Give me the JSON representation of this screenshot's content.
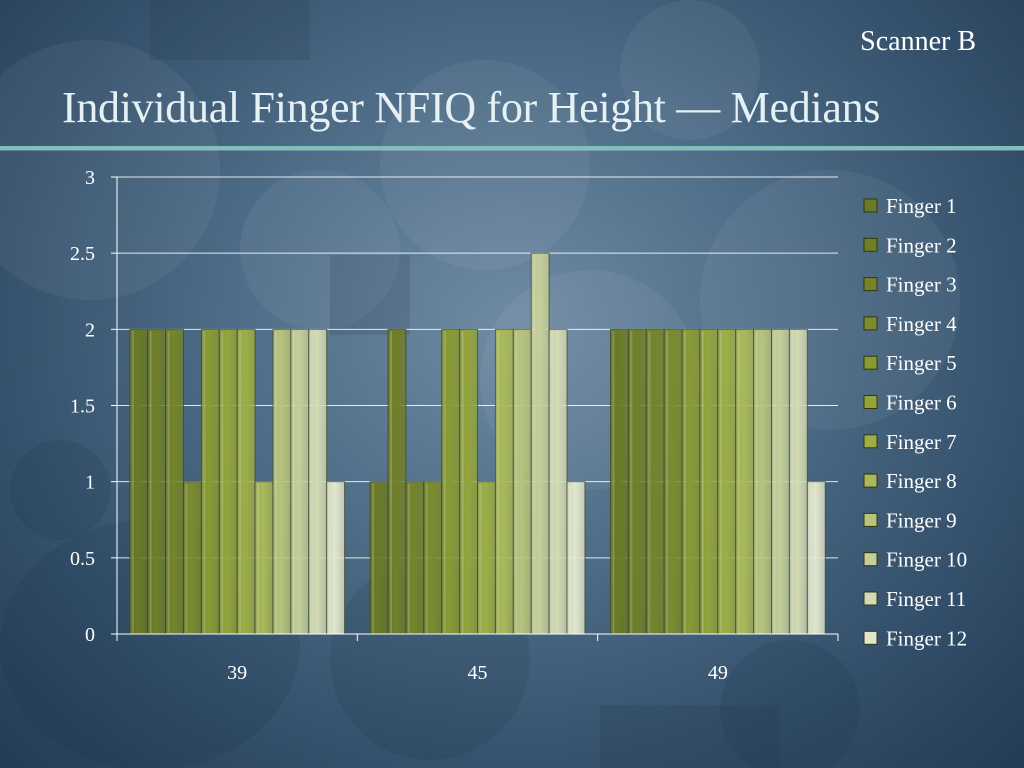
{
  "slide": {
    "header": "Scanner B",
    "title": "Individual Finger NFIQ for Height — Medians"
  },
  "colors": {
    "finger_palette": [
      "#6b7a24",
      "#707f27",
      "#75842a",
      "#7b8b2d",
      "#8a9a32",
      "#94a43a",
      "#9eae45",
      "#aab957",
      "#b8c47a",
      "#c6cf98",
      "#d4dab3",
      "#e2e6cc"
    ],
    "gridline": "#ffffff",
    "accent_rule": "#7fc0b8"
  },
  "chart_data": {
    "type": "bar",
    "categories": [
      "39",
      "45",
      "49"
    ],
    "y_ticks": [
      "0",
      "0.5",
      "1",
      "1.5",
      "2",
      "2.5",
      "3"
    ],
    "ylim": [
      0,
      3
    ],
    "grid": true,
    "legend_position": "right",
    "series": [
      {
        "name": "Finger 1",
        "values": [
          2,
          1,
          2
        ]
      },
      {
        "name": "Finger 2",
        "values": [
          2,
          2,
          2
        ]
      },
      {
        "name": "Finger 3",
        "values": [
          2,
          1,
          2
        ]
      },
      {
        "name": "Finger 4",
        "values": [
          1,
          1,
          2
        ]
      },
      {
        "name": "Finger 5",
        "values": [
          2,
          2,
          2
        ]
      },
      {
        "name": "Finger 6",
        "values": [
          2,
          2,
          2
        ]
      },
      {
        "name": "Finger 7",
        "values": [
          2,
          1,
          2
        ]
      },
      {
        "name": "Finger 8",
        "values": [
          1,
          2,
          2
        ]
      },
      {
        "name": "Finger 9",
        "values": [
          2,
          2,
          2
        ]
      },
      {
        "name": "Finger 10",
        "values": [
          2,
          2.5,
          2
        ]
      },
      {
        "name": "Finger 11",
        "values": [
          2,
          2,
          2
        ]
      },
      {
        "name": "Finger 12",
        "values": [
          1,
          1,
          1
        ]
      }
    ]
  }
}
